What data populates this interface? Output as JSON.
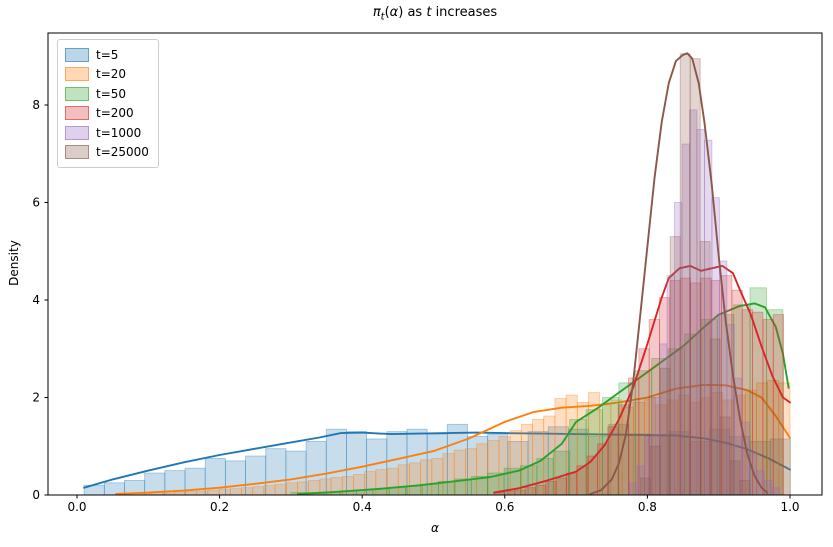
{
  "title": {
    "pi": "π",
    "sub_t": "t",
    "paren_open": "(",
    "alpha": "α",
    "paren_close": ") as ",
    "t_word": "t",
    "suffix": " increases"
  },
  "axes": {
    "xlabel": "α",
    "ylabel": "Density",
    "x_ticks": [
      {
        "value": 0.0,
        "label": "0.0"
      },
      {
        "value": 0.2,
        "label": "0.2"
      },
      {
        "value": 0.4,
        "label": "0.4"
      },
      {
        "value": 0.6,
        "label": "0.6"
      },
      {
        "value": 0.8,
        "label": "0.8"
      },
      {
        "value": 1.0,
        "label": "1.0"
      }
    ],
    "y_ticks": [
      {
        "value": 0,
        "label": "0"
      },
      {
        "value": 2,
        "label": "2"
      },
      {
        "value": 4,
        "label": "4"
      },
      {
        "value": 6,
        "label": "6"
      },
      {
        "value": 8,
        "label": "8"
      }
    ]
  },
  "legend": {
    "items": [
      {
        "label": "t=5",
        "color": "#1f77b4"
      },
      {
        "label": "t=20",
        "color": "#ff7f0e"
      },
      {
        "label": "t=50",
        "color": "#2ca02c"
      },
      {
        "label": "t=200",
        "color": "#d62728"
      },
      {
        "label": "t=1000",
        "color": "#9467bd"
      },
      {
        "label": "t=25000",
        "color": "#8c564b"
      }
    ]
  },
  "chart_data": {
    "type": "bar",
    "subtype": "histogram_with_kde",
    "title": "π_t(α) as t increases",
    "xlabel": "α",
    "ylabel": "Density",
    "xlim": [
      -0.04,
      1.045
    ],
    "ylim": [
      0,
      9.48
    ],
    "grid": false,
    "legend_position": "upper left",
    "series": [
      {
        "name": "t=5",
        "color": "#1f77b4",
        "hist": {
          "bin_start": 0.01,
          "bin_width": 0.0283,
          "heights": [
            0.2,
            0.25,
            0.3,
            0.45,
            0.5,
            0.55,
            0.75,
            0.7,
            0.8,
            0.95,
            0.9,
            1.1,
            1.35,
            1.3,
            1.15,
            1.3,
            1.35,
            1.25,
            1.45,
            1.2,
            1.25,
            1.1,
            1.3,
            1.4,
            1.35,
            1.2,
            1.45,
            1.25,
            1.2,
            1.3,
            1.1,
            1.35,
            1.2,
            1.1,
            1.15
          ]
        },
        "kde": [
          [
            0.01,
            0.15
          ],
          [
            0.05,
            0.32
          ],
          [
            0.1,
            0.5
          ],
          [
            0.15,
            0.67
          ],
          [
            0.2,
            0.82
          ],
          [
            0.25,
            0.95
          ],
          [
            0.3,
            1.08
          ],
          [
            0.34,
            1.18
          ],
          [
            0.37,
            1.27
          ],
          [
            0.4,
            1.28
          ],
          [
            0.44,
            1.25
          ],
          [
            0.48,
            1.26
          ],
          [
            0.52,
            1.27
          ],
          [
            0.56,
            1.28
          ],
          [
            0.6,
            1.27
          ],
          [
            0.65,
            1.26
          ],
          [
            0.7,
            1.25
          ],
          [
            0.75,
            1.24
          ],
          [
            0.8,
            1.23
          ],
          [
            0.84,
            1.22
          ],
          [
            0.88,
            1.16
          ],
          [
            0.91,
            1.07
          ],
          [
            0.94,
            0.94
          ],
          [
            0.97,
            0.75
          ],
          [
            1.0,
            0.52
          ]
        ]
      },
      {
        "name": "t=20",
        "color": "#ff7f0e",
        "hist": {
          "bin_start": 0.058,
          "bin_width": 0.0157,
          "heights": [
            0.02,
            0.03,
            0.03,
            0.05,
            0.04,
            0.06,
            0.07,
            0.08,
            0.1,
            0.12,
            0.13,
            0.15,
            0.17,
            0.2,
            0.22,
            0.25,
            0.27,
            0.3,
            0.33,
            0.36,
            0.38,
            0.42,
            0.48,
            0.52,
            0.55,
            0.62,
            0.66,
            0.72,
            0.75,
            0.85,
            0.92,
            0.95,
            1.05,
            1.12,
            1.2,
            1.32,
            1.45,
            1.55,
            1.62,
            1.98,
            2.05,
            1.9,
            2.1,
            1.85,
            1.95,
            1.8,
            1.9,
            2.0,
            1.85,
            1.95,
            2.05,
            1.9,
            2.0,
            2.1,
            1.95,
            2.05,
            2.15,
            2.3,
            2.35,
            2.3
          ]
        },
        "kde": [
          [
            0.055,
            0.02
          ],
          [
            0.1,
            0.05
          ],
          [
            0.15,
            0.09
          ],
          [
            0.2,
            0.15
          ],
          [
            0.25,
            0.23
          ],
          [
            0.3,
            0.32
          ],
          [
            0.35,
            0.44
          ],
          [
            0.4,
            0.58
          ],
          [
            0.45,
            0.74
          ],
          [
            0.5,
            0.9
          ],
          [
            0.55,
            1.16
          ],
          [
            0.6,
            1.5
          ],
          [
            0.64,
            1.7
          ],
          [
            0.68,
            1.79
          ],
          [
            0.72,
            1.83
          ],
          [
            0.76,
            1.9
          ],
          [
            0.8,
            2.0
          ],
          [
            0.84,
            2.18
          ],
          [
            0.88,
            2.26
          ],
          [
            0.91,
            2.25
          ],
          [
            0.94,
            2.15
          ],
          [
            0.96,
            2.0
          ],
          [
            0.98,
            1.62
          ],
          [
            1.0,
            1.17
          ]
        ]
      },
      {
        "name": "t=50",
        "color": "#2ca02c",
        "hist": {
          "bin_start": 0.3,
          "bin_width": 0.023,
          "heights": [
            0.05,
            0.04,
            0.06,
            0.08,
            0.1,
            0.12,
            0.15,
            0.18,
            0.22,
            0.28,
            0.33,
            0.38,
            0.45,
            0.55,
            0.6,
            0.75,
            0.9,
            1.55,
            1.75,
            2.0,
            2.3,
            2.55,
            2.8,
            3.0,
            3.3,
            3.6,
            3.7,
            3.9,
            4.25,
            3.8
          ]
        },
        "kde": [
          [
            0.31,
            0.02
          ],
          [
            0.36,
            0.06
          ],
          [
            0.42,
            0.12
          ],
          [
            0.48,
            0.2
          ],
          [
            0.54,
            0.3
          ],
          [
            0.58,
            0.37
          ],
          [
            0.62,
            0.5
          ],
          [
            0.65,
            0.7
          ],
          [
            0.68,
            1.05
          ],
          [
            0.7,
            1.5
          ],
          [
            0.73,
            1.78
          ],
          [
            0.76,
            2.1
          ],
          [
            0.8,
            2.52
          ],
          [
            0.85,
            3.05
          ],
          [
            0.88,
            3.45
          ],
          [
            0.9,
            3.7
          ],
          [
            0.93,
            3.88
          ],
          [
            0.95,
            3.93
          ],
          [
            0.965,
            3.85
          ],
          [
            0.98,
            3.45
          ],
          [
            0.99,
            2.9
          ],
          [
            0.998,
            2.2
          ]
        ]
      },
      {
        "name": "t=200",
        "color": "#d62728",
        "hist": {
          "bin_start": 0.585,
          "bin_width": 0.0145,
          "heights": [
            0.05,
            0.08,
            0.1,
            0.15,
            0.2,
            0.28,
            0.35,
            0.45,
            0.6,
            0.8,
            1.05,
            1.4,
            1.85,
            2.4,
            3.0,
            3.6,
            4.05,
            4.4,
            4.45,
            4.35,
            4.45,
            4.4,
            4.5,
            4.2,
            3.8,
            3.75,
            3.6,
            3.7
          ]
        },
        "kde": [
          [
            0.585,
            0.05
          ],
          [
            0.62,
            0.14
          ],
          [
            0.66,
            0.3
          ],
          [
            0.7,
            0.48
          ],
          [
            0.72,
            0.68
          ],
          [
            0.74,
            1.02
          ],
          [
            0.76,
            1.55
          ],
          [
            0.78,
            2.2
          ],
          [
            0.8,
            3.1
          ],
          [
            0.82,
            4.05
          ],
          [
            0.83,
            4.45
          ],
          [
            0.845,
            4.65
          ],
          [
            0.86,
            4.7
          ],
          [
            0.875,
            4.6
          ],
          [
            0.89,
            4.65
          ],
          [
            0.905,
            4.7
          ],
          [
            0.92,
            4.55
          ],
          [
            0.93,
            4.2
          ],
          [
            0.945,
            3.7
          ],
          [
            0.96,
            3.05
          ],
          [
            0.975,
            2.45
          ],
          [
            0.99,
            2.0
          ],
          [
            1.0,
            1.9
          ]
        ]
      },
      {
        "name": "t=1000",
        "color": "#9467bd",
        "hist": {
          "bin_start": 0.775,
          "bin_width": 0.0105,
          "heights": [
            0.25,
            0.6,
            1.2,
            2.0,
            3.1,
            4.5,
            6.0,
            7.2,
            7.9,
            7.5,
            7.28,
            6.1,
            4.8,
            3.5,
            2.4,
            1.5,
            0.9,
            0.5,
            0.3,
            0.15
          ]
        },
        "kde": []
      },
      {
        "name": "t=25000",
        "color": "#8c564b",
        "hist": {
          "bin_start": 0.79,
          "bin_width": 0.014,
          "heights": [
            0.35,
            1.0,
            2.6,
            5.3,
            9.05,
            8.95,
            5.2,
            3.2,
            1.6,
            0.7,
            0.3
          ]
        },
        "kde": [
          [
            0.72,
            0.02
          ],
          [
            0.735,
            0.1
          ],
          [
            0.75,
            0.32
          ],
          [
            0.76,
            0.65
          ],
          [
            0.77,
            1.25
          ],
          [
            0.78,
            2.3
          ],
          [
            0.79,
            3.7
          ],
          [
            0.8,
            5.1
          ],
          [
            0.81,
            6.5
          ],
          [
            0.82,
            7.65
          ],
          [
            0.83,
            8.45
          ],
          [
            0.84,
            8.9
          ],
          [
            0.85,
            9.03
          ],
          [
            0.856,
            9.06
          ],
          [
            0.863,
            8.95
          ],
          [
            0.872,
            8.45
          ],
          [
            0.88,
            7.65
          ],
          [
            0.89,
            6.4
          ],
          [
            0.9,
            4.9
          ],
          [
            0.91,
            3.55
          ],
          [
            0.92,
            2.45
          ],
          [
            0.93,
            1.55
          ],
          [
            0.94,
            0.85
          ],
          [
            0.95,
            0.4
          ],
          [
            0.96,
            0.15
          ],
          [
            0.968,
            0.05
          ]
        ]
      }
    ]
  }
}
